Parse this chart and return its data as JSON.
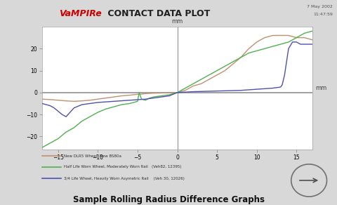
{
  "title_vampire": "VaMPIRe",
  "title_main": " CONTACT DATA PLOT",
  "date_text": "7 May 2002",
  "time_text": "11:47:59",
  "xlabel": "mm",
  "ylabel": "mm",
  "xlim": [
    -17,
    17
  ],
  "ylim": [
    -26,
    30
  ],
  "xticks": [
    -15,
    -10,
    -5,
    0,
    5,
    10,
    15
  ],
  "yticks": [
    -20,
    -10,
    0,
    10,
    20
  ],
  "bg_color": "#d8d8d8",
  "plot_bg_color": "#ffffff",
  "legend_lines": [
    {
      "label": "New DLR5 Wheel, New BS80a",
      "color": "#c09070"
    },
    {
      "label": "Half Life Worn Wheel, Moderately Worn Rail   (Veh82, 12395)",
      "color": "#50b050"
    },
    {
      "label": "3/4 Life Wheel, Heavily Worn Asymetric Rail    (Veh 30, 12026)",
      "color": "#5050b0"
    }
  ],
  "bottom_title": "Sample Rolling Radius Difference Graphs",
  "red_x": [
    -17,
    -16,
    -15,
    -14,
    -13,
    -12,
    -11,
    -10,
    -9,
    -8,
    -7,
    -6,
    -5.5,
    -5,
    -4.5,
    -4,
    -3,
    -2,
    -1,
    -0.5,
    0,
    0.2,
    0.5,
    1,
    1.5,
    2,
    3,
    4,
    5,
    6,
    7,
    8,
    9,
    10,
    11,
    12,
    13,
    14,
    15,
    16,
    17
  ],
  "red_y": [
    -3,
    -3.2,
    -3.5,
    -3.8,
    -4,
    -3.8,
    -3.5,
    -3,
    -2.5,
    -2,
    -1.5,
    -1.2,
    -1,
    -0.8,
    -0.7,
    -0.5,
    -0.3,
    -0.2,
    -0.1,
    0,
    0,
    0.2,
    0.5,
    1,
    2,
    3,
    4,
    6,
    8,
    10,
    13,
    16,
    20,
    23,
    25,
    26,
    26,
    26,
    25,
    25,
    24
  ],
  "green_x": [
    -17,
    -16,
    -15,
    -14,
    -13,
    -12,
    -11,
    -10,
    -9,
    -8,
    -7,
    -6,
    -5.5,
    -5,
    -4.8,
    -4.5,
    -4,
    -3.5,
    -3,
    -2,
    -1,
    -0.5,
    0,
    0.5,
    1,
    2,
    3,
    4,
    5,
    6,
    7,
    8,
    9,
    10,
    11,
    12,
    13,
    14,
    15,
    16,
    17
  ],
  "green_y": [
    -25,
    -23,
    -21,
    -18,
    -16,
    -13,
    -11,
    -9,
    -7.5,
    -6.5,
    -5.5,
    -5,
    -4.5,
    -4,
    0,
    -3,
    -3.5,
    -2.5,
    -2,
    -1.5,
    -1,
    -0.5,
    0,
    1,
    2,
    4,
    6,
    8,
    10,
    12,
    14,
    16,
    18,
    19,
    20,
    21,
    22,
    23,
    25,
    27,
    28
  ],
  "blue_x": [
    -17,
    -16.5,
    -16,
    -15.5,
    -15,
    -14.5,
    -14,
    -13.5,
    -13,
    -12,
    -10,
    -8,
    -6,
    -4,
    -2,
    -1,
    0,
    1,
    2,
    4,
    6,
    8,
    10,
    12,
    13,
    13.2,
    13.5,
    14,
    14.5,
    15,
    15.5,
    16,
    17
  ],
  "blue_y": [
    -5,
    -5.5,
    -6,
    -7,
    -8.5,
    -10,
    -11,
    -9,
    -7,
    -5.5,
    -4.5,
    -4,
    -3.5,
    -3,
    -2,
    -1.5,
    0,
    0.2,
    0.4,
    0.6,
    0.8,
    1,
    1.5,
    2,
    2.5,
    3.5,
    8,
    20,
    23,
    23,
    22,
    22,
    22
  ]
}
